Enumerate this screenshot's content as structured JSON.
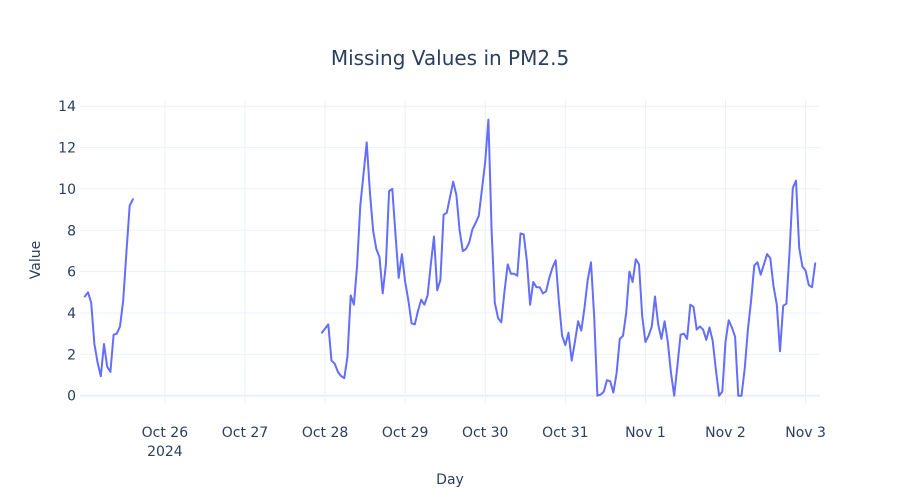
{
  "chart_data": {
    "type": "line",
    "title": "Missing Values in PM2.5",
    "xlabel": "Day",
    "ylabel": "Value",
    "ylim": [
      -0.4,
      14.3
    ],
    "x_tick_labels": [
      {
        "day": 1.0,
        "label": "Oct 26",
        "sublabel": "2024"
      },
      {
        "day": 2.0,
        "label": "Oct 27",
        "sublabel": ""
      },
      {
        "day": 3.0,
        "label": "Oct 28",
        "sublabel": ""
      },
      {
        "day": 4.0,
        "label": "Oct 29",
        "sublabel": ""
      },
      {
        "day": 5.0,
        "label": "Oct 30",
        "sublabel": ""
      },
      {
        "day": 6.0,
        "label": "Oct 31",
        "sublabel": ""
      },
      {
        "day": 7.0,
        "label": "Nov 1",
        "sublabel": ""
      },
      {
        "day": 8.0,
        "label": "Nov 2",
        "sublabel": ""
      },
      {
        "day": 9.0,
        "label": "Nov 3",
        "sublabel": ""
      }
    ],
    "y_ticks": [
      0,
      2,
      4,
      6,
      8,
      10,
      12,
      14
    ],
    "grid": true,
    "legend": "none",
    "series": [
      {
        "color": "#636efa",
        "segments": [
          [
            [
              0.0,
              4.8
            ],
            [
              0.04,
              5.0
            ],
            [
              0.08,
              4.5
            ],
            [
              0.12,
              2.5
            ],
            [
              0.16,
              1.6
            ],
            [
              0.2,
              0.95
            ],
            [
              0.24,
              2.5
            ],
            [
              0.28,
              1.4
            ],
            [
              0.32,
              1.15
            ],
            [
              0.36,
              2.95
            ],
            [
              0.4,
              3.0
            ],
            [
              0.44,
              3.35
            ],
            [
              0.48,
              4.6
            ],
            [
              0.52,
              7.0
            ],
            [
              0.56,
              9.2
            ],
            [
              0.6,
              9.5
            ]
          ],
          [
            [
              2.96,
              3.05
            ],
            [
              3.04,
              3.45
            ],
            [
              3.08,
              1.7
            ],
            [
              3.12,
              1.55
            ],
            [
              3.16,
              1.15
            ],
            [
              3.2,
              0.95
            ],
            [
              3.24,
              0.85
            ],
            [
              3.28,
              1.9
            ],
            [
              3.32,
              4.85
            ],
            [
              3.36,
              4.4
            ],
            [
              3.4,
              6.3
            ],
            [
              3.44,
              9.2
            ],
            [
              3.48,
              10.7
            ],
            [
              3.52,
              12.25
            ],
            [
              3.56,
              9.85
            ],
            [
              3.6,
              8.0
            ],
            [
              3.64,
              7.1
            ],
            [
              3.68,
              6.7
            ],
            [
              3.72,
              4.95
            ],
            [
              3.76,
              6.35
            ],
            [
              3.8,
              9.9
            ],
            [
              3.84,
              10.0
            ],
            [
              3.88,
              7.8
            ],
            [
              3.92,
              5.7
            ],
            [
              3.96,
              6.85
            ],
            [
              4.0,
              5.5
            ],
            [
              4.04,
              4.6
            ],
            [
              4.08,
              3.5
            ],
            [
              4.12,
              3.45
            ],
            [
              4.16,
              4.1
            ],
            [
              4.2,
              4.65
            ],
            [
              4.24,
              4.4
            ],
            [
              4.28,
              4.85
            ],
            [
              4.32,
              6.35
            ],
            [
              4.36,
              7.7
            ],
            [
              4.4,
              5.1
            ],
            [
              4.44,
              5.6
            ],
            [
              4.48,
              8.75
            ],
            [
              4.52,
              8.85
            ],
            [
              4.56,
              9.6
            ],
            [
              4.6,
              10.35
            ],
            [
              4.64,
              9.7
            ],
            [
              4.68,
              8.0
            ],
            [
              4.72,
              7.0
            ],
            [
              4.76,
              7.1
            ],
            [
              4.8,
              7.4
            ],
            [
              4.84,
              8.05
            ],
            [
              4.88,
              8.35
            ],
            [
              4.92,
              8.7
            ],
            [
              4.96,
              10.0
            ],
            [
              5.0,
              11.3
            ],
            [
              5.04,
              13.35
            ],
            [
              5.08,
              8.0
            ],
            [
              5.12,
              4.5
            ],
            [
              5.16,
              3.75
            ],
            [
              5.2,
              3.55
            ],
            [
              5.24,
              5.05
            ],
            [
              5.28,
              6.35
            ],
            [
              5.32,
              5.9
            ],
            [
              5.36,
              5.9
            ],
            [
              5.4,
              5.8
            ],
            [
              5.44,
              7.85
            ],
            [
              5.48,
              7.8
            ],
            [
              5.52,
              6.5
            ],
            [
              5.56,
              4.4
            ],
            [
              5.6,
              5.5
            ],
            [
              5.64,
              5.25
            ],
            [
              5.68,
              5.25
            ],
            [
              5.72,
              4.95
            ],
            [
              5.76,
              5.05
            ],
            [
              5.8,
              5.7
            ],
            [
              5.84,
              6.2
            ],
            [
              5.88,
              6.55
            ],
            [
              5.92,
              4.55
            ],
            [
              5.96,
              2.9
            ],
            [
              6.0,
              2.45
            ],
            [
              6.04,
              3.05
            ],
            [
              6.08,
              1.7
            ],
            [
              6.12,
              2.6
            ],
            [
              6.16,
              3.6
            ],
            [
              6.2,
              3.15
            ],
            [
              6.24,
              4.25
            ],
            [
              6.28,
              5.6
            ],
            [
              6.32,
              6.45
            ],
            [
              6.36,
              3.8
            ],
            [
              6.4,
              0.0
            ],
            [
              6.44,
              0.05
            ],
            [
              6.48,
              0.2
            ],
            [
              6.52,
              0.75
            ],
            [
              6.56,
              0.7
            ],
            [
              6.6,
              0.15
            ],
            [
              6.64,
              1.1
            ],
            [
              6.68,
              2.75
            ],
            [
              6.72,
              2.9
            ],
            [
              6.76,
              4.0
            ],
            [
              6.8,
              6.0
            ],
            [
              6.84,
              5.5
            ],
            [
              6.88,
              6.6
            ],
            [
              6.92,
              6.35
            ],
            [
              6.96,
              3.85
            ],
            [
              7.0,
              2.6
            ],
            [
              7.04,
              2.9
            ],
            [
              7.08,
              3.35
            ],
            [
              7.12,
              4.8
            ],
            [
              7.16,
              3.45
            ],
            [
              7.2,
              2.75
            ],
            [
              7.24,
              3.6
            ],
            [
              7.28,
              2.6
            ],
            [
              7.32,
              1.1
            ],
            [
              7.36,
              0.0
            ],
            [
              7.4,
              1.45
            ],
            [
              7.44,
              2.95
            ],
            [
              7.48,
              3.0
            ],
            [
              7.52,
              2.75
            ],
            [
              7.56,
              4.4
            ],
            [
              7.6,
              4.3
            ],
            [
              7.64,
              3.2
            ],
            [
              7.68,
              3.35
            ],
            [
              7.72,
              3.2
            ],
            [
              7.76,
              2.7
            ],
            [
              7.8,
              3.3
            ],
            [
              7.84,
              2.65
            ],
            [
              7.88,
              1.25
            ],
            [
              7.92,
              0.0
            ],
            [
              7.96,
              0.2
            ],
            [
              8.0,
              2.6
            ],
            [
              8.04,
              3.65
            ],
            [
              8.08,
              3.3
            ],
            [
              8.12,
              2.85
            ],
            [
              8.16,
              0.0
            ],
            [
              8.2,
              0.0
            ],
            [
              8.24,
              1.3
            ],
            [
              8.28,
              3.2
            ],
            [
              8.32,
              4.6
            ],
            [
              8.36,
              6.3
            ],
            [
              8.4,
              6.45
            ],
            [
              8.44,
              5.85
            ],
            [
              8.48,
              6.35
            ],
            [
              8.52,
              6.85
            ],
            [
              8.56,
              6.65
            ],
            [
              8.6,
              5.3
            ],
            [
              8.64,
              4.4
            ],
            [
              8.68,
              2.15
            ],
            [
              8.72,
              4.35
            ],
            [
              8.76,
              4.45
            ],
            [
              8.8,
              7.0
            ],
            [
              8.84,
              10.05
            ],
            [
              8.88,
              10.4
            ],
            [
              8.92,
              7.15
            ],
            [
              8.96,
              6.25
            ],
            [
              9.0,
              6.05
            ],
            [
              9.04,
              5.35
            ],
            [
              9.08,
              5.25
            ],
            [
              9.12,
              6.4
            ]
          ]
        ]
      }
    ]
  }
}
